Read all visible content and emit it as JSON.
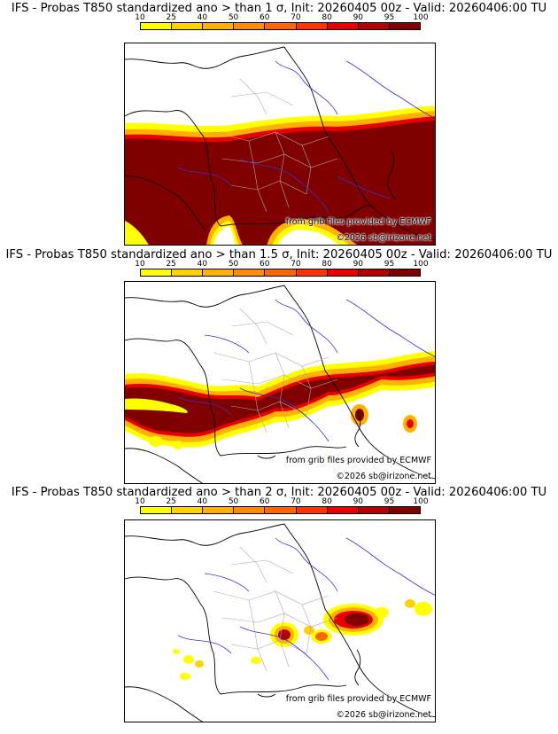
{
  "colorbar": {
    "ticks": [
      "10",
      "25",
      "40",
      "50",
      "60",
      "70",
      "80",
      "90",
      "95",
      "100"
    ],
    "colors": [
      "#ffff00",
      "#ffd200",
      "#ffb000",
      "#ff8c00",
      "#ff6600",
      "#ff3300",
      "#e60000",
      "#b40000",
      "#800000"
    ]
  },
  "credits": {
    "source": "from grib files provided by ECMWF",
    "copyright": "©2026 sb@irizone.net"
  },
  "panels": [
    {
      "title": "IFS - Probas T850  standardized ano > than 1 σ, Init: 20260405 00z - Valid: 20260406:00 TU",
      "threshold_sigma": 1
    },
    {
      "title": "IFS - Probas T850  standardized ano > than 1.5 σ, Init: 20260405 00z - Valid: 20260406:00 TU",
      "threshold_sigma": 1.5
    },
    {
      "title": "IFS - Probas T850  standardized ano > than 2 σ, Init: 20260405 00z - Valid: 20260406:00 TU",
      "threshold_sigma": 2
    }
  ]
}
